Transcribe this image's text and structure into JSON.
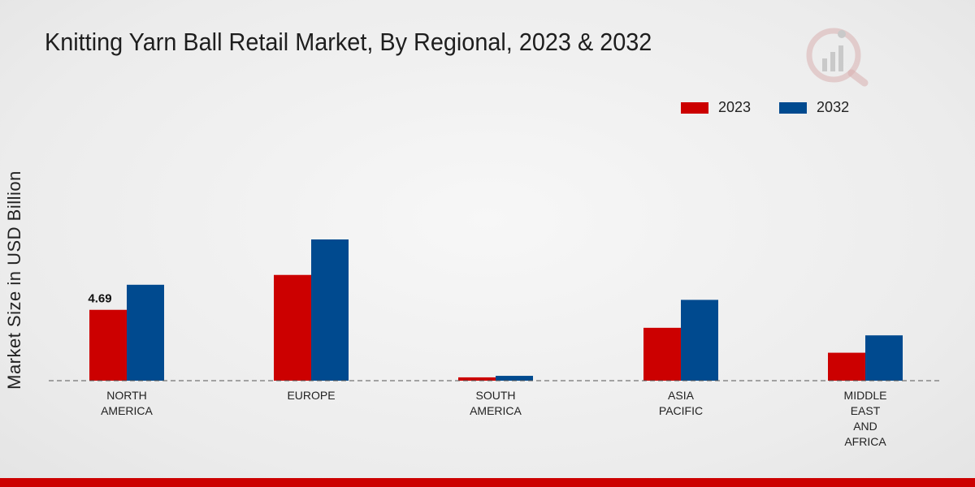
{
  "title": "Knitting Yarn Ball Retail Market, By Regional, 2023 & 2032",
  "colors": {
    "series_2023": "#cc0000",
    "series_2032": "#004a8f",
    "accent_bar": "#cc0000"
  },
  "chart_data": {
    "type": "bar",
    "title": "Knitting Yarn Ball Retail Market, By Regional, 2023 & 2032",
    "xlabel": "",
    "ylabel": "Market Size in USD Billion",
    "categories": [
      [
        "NORTH",
        "AMERICA"
      ],
      [
        "EUROPE"
      ],
      [
        "SOUTH",
        "AMERICA"
      ],
      [
        "ASIA",
        "PACIFIC"
      ],
      [
        "MIDDLE",
        "EAST",
        "AND",
        "AFRICA"
      ]
    ],
    "series": [
      {
        "name": "2023",
        "values": [
          4.69,
          7.0,
          0.22,
          3.5,
          1.85
        ]
      },
      {
        "name": "2032",
        "values": [
          6.35,
          9.35,
          0.32,
          5.35,
          3.0
        ]
      }
    ],
    "data_labels": [
      {
        "series": 0,
        "index": 0,
        "text": "4.69"
      }
    ],
    "ylim": [
      0,
      12
    ],
    "grid": false,
    "legend_position": "top-right",
    "baseline": "dashed"
  }
}
